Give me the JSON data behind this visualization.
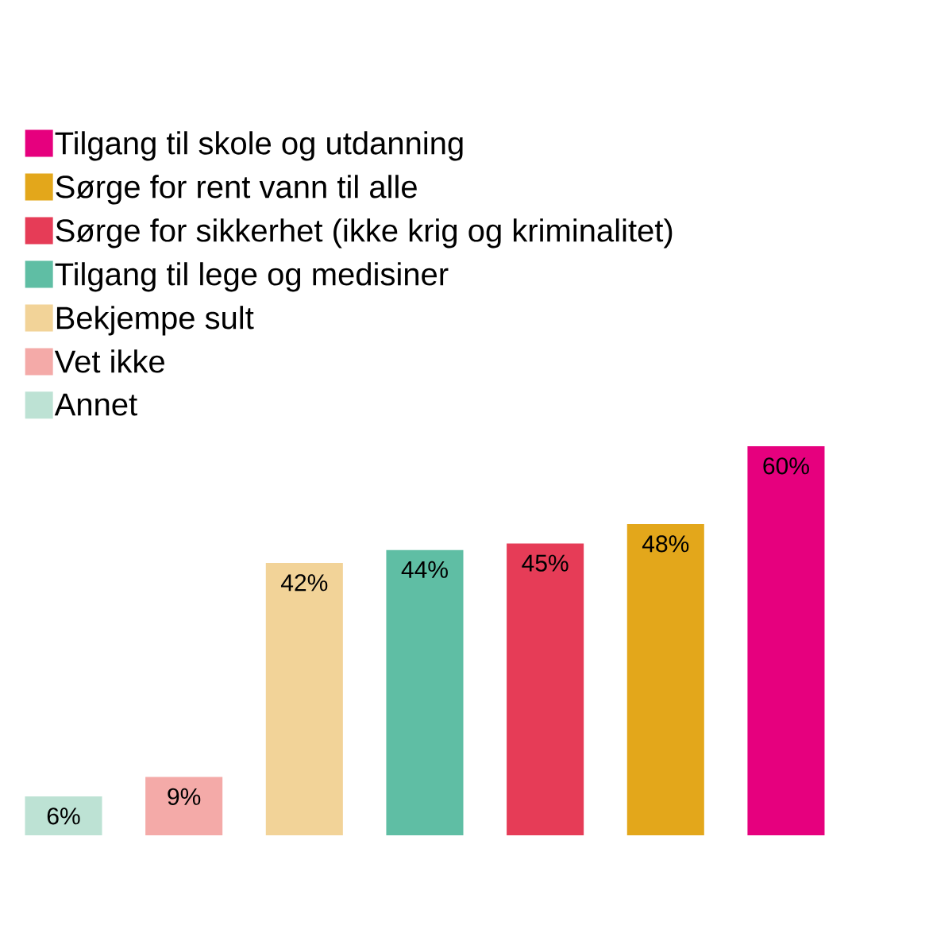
{
  "chart_data": {
    "type": "bar",
    "stacked": true,
    "categories": [
      null,
      null,
      null,
      null,
      null,
      null,
      null
    ],
    "legend": "top left",
    "series": [
      {
        "name": "Tilgang til skole og utdanning",
        "color": "#e6007e",
        "values": [
          null,
          null,
          null,
          null,
          null,
          null,
          60
        ],
        "value_labels": [
          null,
          null,
          null,
          null,
          null,
          null,
          "60%"
        ]
      },
      {
        "name": "Sørge for rent vann til alle",
        "color": "#e3a71b",
        "values": [
          null,
          null,
          null,
          null,
          null,
          48,
          null
        ],
        "value_labels": [
          null,
          null,
          null,
          null,
          null,
          "48%",
          null
        ]
      },
      {
        "name": "Sørge for sikkerhet (ikke krig og kriminalitet)",
        "color": "#e63c57",
        "values": [
          null,
          null,
          null,
          null,
          45,
          null,
          null
        ],
        "value_labels": [
          null,
          null,
          null,
          null,
          "45%",
          null,
          null
        ]
      },
      {
        "name": "Tilgang til lege og medisiner",
        "color": "#5fbea4",
        "values": [
          null,
          null,
          null,
          44,
          null,
          null,
          null
        ],
        "value_labels": [
          null,
          null,
          null,
          "44%",
          null,
          null,
          null
        ]
      },
      {
        "name": "Bekjempe sult",
        "color": "#f2d398",
        "values": [
          null,
          null,
          42,
          null,
          null,
          null,
          null
        ],
        "value_labels": [
          null,
          null,
          "42%",
          null,
          null,
          null,
          null
        ]
      },
      {
        "name": "Vet ikke",
        "color": "#f4aaa8",
        "values": [
          null,
          9,
          null,
          null,
          null,
          null,
          null
        ],
        "value_labels": [
          null,
          "9%",
          null,
          null,
          null,
          null,
          null
        ]
      },
      {
        "name": "Annet",
        "color": "#bde2d4",
        "values": [
          6,
          null,
          null,
          null,
          null,
          null,
          null
        ],
        "value_labels": [
          "6%",
          null,
          null,
          null,
          null,
          null,
          null
        ]
      }
    ]
  }
}
